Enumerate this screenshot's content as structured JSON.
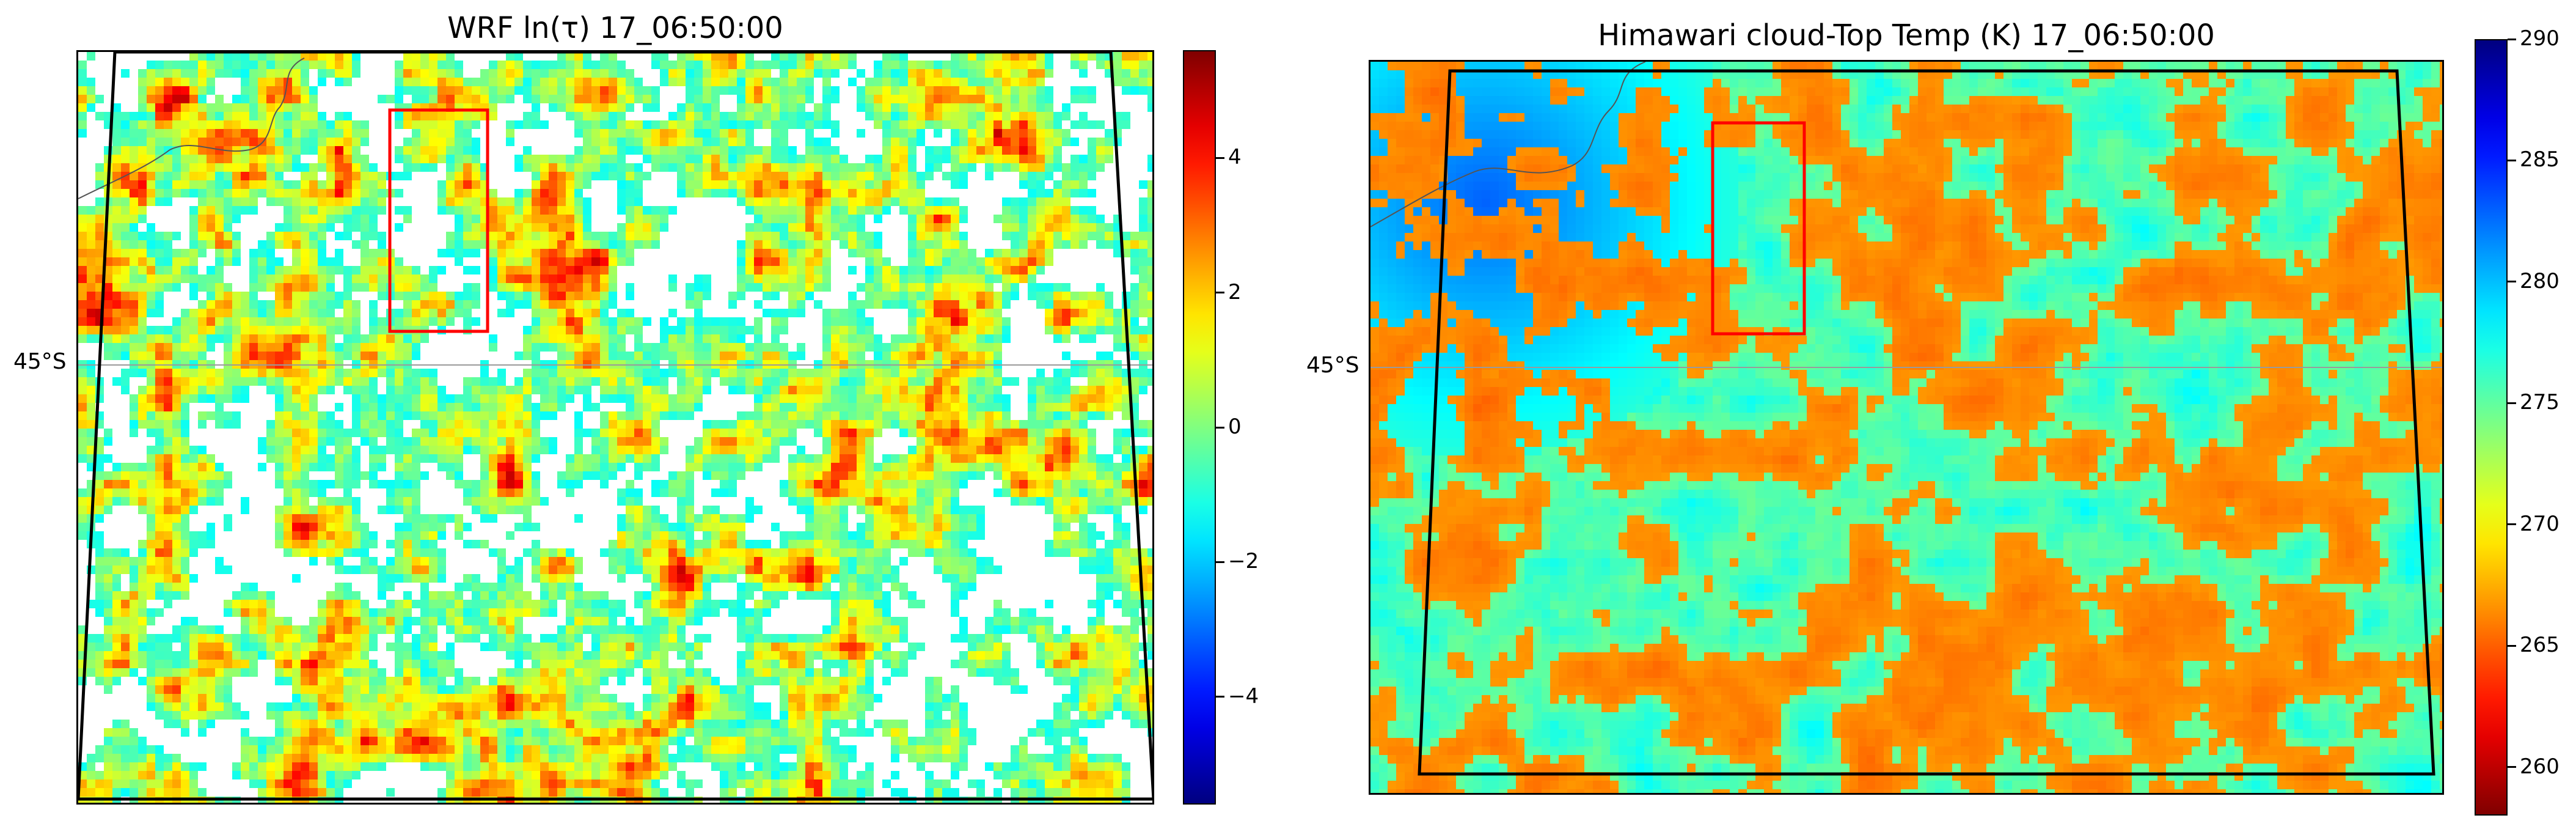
{
  "chart_data": [
    {
      "type": "heatmap",
      "title": "WRF ln(τ) 17_06:50:00",
      "latitude_label": "45°S",
      "colorbar": {
        "colormap": "jet",
        "range": [
          -5.6,
          5.6
        ],
        "ticks": [
          -4,
          -2,
          0,
          2,
          4
        ],
        "tick_labels": [
          "−4",
          "−2",
          "0",
          "2",
          "4"
        ]
      },
      "missing_value_color": "#ffffff",
      "highlight_box_color": "#ff0000",
      "features": [
        "coastline",
        "latitude gridline 45°S",
        "domain boundary",
        "red highlight box"
      ]
    },
    {
      "type": "heatmap",
      "title": "Himawari cloud-Top Temp (K) 17_06:50:00",
      "latitude_label": "45°S",
      "colorbar": {
        "colormap": "jet_r",
        "range": [
          258,
          290
        ],
        "ticks": [
          260,
          265,
          270,
          275,
          280,
          285,
          290
        ],
        "tick_labels": [
          "260",
          "265",
          "270",
          "275",
          "280",
          "285",
          "290"
        ]
      },
      "highlight_box_color": "#ff0000",
      "features": [
        "coastline",
        "latitude gridline 45°S",
        "domain boundary",
        "red highlight box"
      ]
    }
  ]
}
